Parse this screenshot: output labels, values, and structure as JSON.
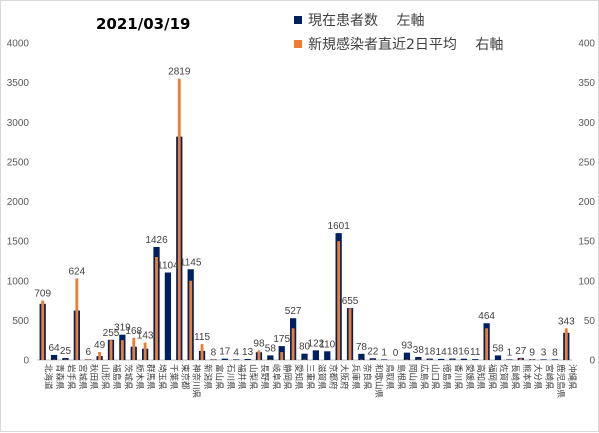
{
  "chart_data": {
    "type": "bar",
    "title": "2021/03/19",
    "legend_position": "top-right",
    "grid": false,
    "categories": [
      "北海道",
      "青森県",
      "岩手県",
      "宮城県",
      "秋田県",
      "山形県",
      "福島県",
      "茨城県",
      "栃木県",
      "群馬県",
      "埼玉県",
      "千葉県",
      "東京都",
      "神奈川県",
      "新潟県",
      "富山県",
      "石川県",
      "福井県",
      "山梨県",
      "長野県",
      "岐阜県",
      "静岡県",
      "愛知県",
      "三重県",
      "滋賀県",
      "京都府",
      "大阪府",
      "兵庫県",
      "奈良県",
      "和歌山県",
      "鳥取県",
      "島根県",
      "岡山県",
      "広島県",
      "山口県",
      "徳島県",
      "香川県",
      "愛媛県",
      "高知県",
      "福岡県",
      "佐賀県",
      "長崎県",
      "熊本県",
      "大分県",
      "宮崎県",
      "鹿児島県",
      "沖縄県"
    ],
    "series": [
      {
        "name": "現在患者数　 左軸",
        "axis": "left",
        "color": "#002060",
        "values": [
          709,
          64,
          25,
          624,
          6,
          49,
          255,
          319,
          168,
          143,
          1426,
          1104,
          2819,
          1145,
          115,
          8,
          17,
          4,
          13,
          98,
          58,
          175,
          527,
          80,
          122,
          110,
          1601,
          655,
          78,
          22,
          1,
          0,
          93,
          38,
          18,
          14,
          18,
          16,
          11,
          464,
          58,
          1,
          27,
          9,
          3,
          8,
          343
        ]
      },
      {
        "name": "新規感染者直近2日平均　 右軸",
        "axis": "right",
        "color": "#ed7d31",
        "values": [
          75,
          0.5,
          0.5,
          103,
          1,
          10,
          25,
          25,
          28,
          22,
          130,
          0,
          355,
          100,
          20,
          0.5,
          0,
          0,
          0,
          12,
          0.5,
          10,
          40,
          0.5,
          0,
          0,
          150,
          65,
          0.5,
          0.5,
          0,
          0,
          0.5,
          0.5,
          0.5,
          0,
          0.5,
          0,
          0,
          40,
          0,
          0,
          2,
          0.5,
          0,
          0,
          40
        ]
      }
    ],
    "y_left": {
      "min": 0,
      "max": 4000,
      "ticks": [
        "0",
        "500",
        "1000",
        "1500",
        "2000",
        "2500",
        "3000",
        "3500",
        "4000"
      ]
    },
    "y_right": {
      "min": 0,
      "max": 400,
      "ticks": [
        "0",
        "50",
        "100",
        "150",
        "200",
        "250",
        "300",
        "350",
        "400"
      ]
    }
  }
}
